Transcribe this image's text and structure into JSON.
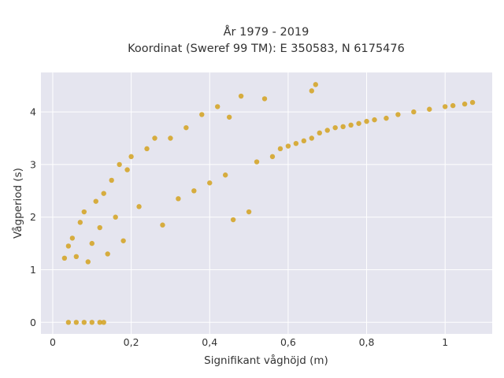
{
  "chart_data": {
    "type": "scatter",
    "title_line1": "År 1979 - 2019",
    "title_line2": "Koordinat (Sweref 99 TM): E 350583, N 6175476",
    "xlabel": "Signifikant våghöjd (m)",
    "ylabel": "Vågperiod (s)",
    "xlim": [
      -0.03,
      1.12
    ],
    "ylim": [
      -0.22,
      4.75
    ],
    "x_ticks": [
      0,
      0.2,
      0.4,
      0.6,
      0.8,
      1.0
    ],
    "x_tick_labels": [
      "0",
      "0,2",
      "0,4",
      "0,6",
      "0,8",
      "1"
    ],
    "y_ticks": [
      0,
      1,
      2,
      3,
      4
    ],
    "y_tick_labels": [
      "0",
      "1",
      "2",
      "3",
      "4"
    ],
    "grid": true,
    "marker_color": "#d4a21f",
    "background_color": "#e5e5ef",
    "series": [
      {
        "points": [
          [
            0.04,
            0.0
          ],
          [
            0.06,
            0.0
          ],
          [
            0.08,
            0.0
          ],
          [
            0.1,
            0.0
          ],
          [
            0.12,
            0.0
          ],
          [
            0.13,
            0.0
          ],
          [
            0.03,
            1.22
          ],
          [
            0.04,
            1.45
          ],
          [
            0.05,
            1.6
          ],
          [
            0.06,
            1.25
          ],
          [
            0.07,
            1.9
          ],
          [
            0.08,
            2.1
          ],
          [
            0.09,
            1.15
          ],
          [
            0.1,
            1.5
          ],
          [
            0.11,
            2.3
          ],
          [
            0.12,
            1.8
          ],
          [
            0.13,
            2.45
          ],
          [
            0.14,
            1.3
          ],
          [
            0.15,
            2.7
          ],
          [
            0.16,
            2.0
          ],
          [
            0.17,
            3.0
          ],
          [
            0.18,
            1.55
          ],
          [
            0.19,
            2.9
          ],
          [
            0.2,
            3.15
          ],
          [
            0.22,
            2.2
          ],
          [
            0.24,
            3.3
          ],
          [
            0.26,
            3.5
          ],
          [
            0.28,
            1.85
          ],
          [
            0.3,
            3.5
          ],
          [
            0.32,
            2.35
          ],
          [
            0.34,
            3.7
          ],
          [
            0.36,
            2.5
          ],
          [
            0.38,
            3.95
          ],
          [
            0.4,
            2.65
          ],
          [
            0.42,
            4.1
          ],
          [
            0.44,
            2.8
          ],
          [
            0.46,
            1.95
          ],
          [
            0.48,
            4.3
          ],
          [
            0.5,
            2.1
          ],
          [
            0.52,
            3.05
          ],
          [
            0.54,
            4.25
          ],
          [
            0.56,
            3.15
          ],
          [
            0.58,
            3.3
          ],
          [
            0.6,
            3.35
          ],
          [
            0.62,
            3.4
          ],
          [
            0.64,
            3.45
          ],
          [
            0.66,
            3.5
          ],
          [
            0.68,
            3.6
          ],
          [
            0.7,
            3.65
          ],
          [
            0.72,
            3.7
          ],
          [
            0.74,
            3.72
          ],
          [
            0.76,
            3.75
          ],
          [
            0.78,
            3.78
          ],
          [
            0.8,
            3.82
          ],
          [
            0.82,
            3.85
          ],
          [
            0.85,
            3.88
          ],
          [
            0.88,
            3.95
          ],
          [
            0.92,
            4.0
          ],
          [
            0.96,
            4.05
          ],
          [
            1.0,
            4.1
          ],
          [
            1.02,
            4.12
          ],
          [
            1.05,
            4.15
          ],
          [
            1.07,
            4.18
          ],
          [
            0.67,
            4.52
          ],
          [
            0.66,
            4.4
          ],
          [
            0.45,
            3.9
          ]
        ]
      }
    ]
  }
}
